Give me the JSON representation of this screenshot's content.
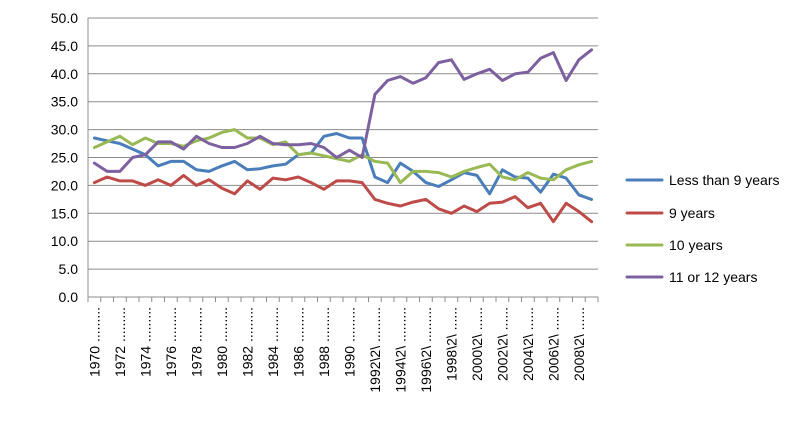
{
  "chart_data": {
    "type": "line",
    "title": "",
    "xlabel": "",
    "ylabel": "",
    "ylim": [
      0,
      50
    ],
    "yticks": [
      "0.0",
      "5.0",
      "10.0",
      "15.0",
      "20.0",
      "25.0",
      "30.0",
      "35.0",
      "40.0",
      "45.0",
      "50.0"
    ],
    "categories": [
      "1970",
      "1971",
      "1972",
      "1973",
      "1974",
      "1975",
      "1976",
      "1977",
      "1978",
      "1979",
      "1980",
      "1981",
      "1982",
      "1983",
      "1984",
      "1985",
      "1986",
      "1987",
      "1988",
      "1989",
      "1990",
      "1991",
      "1992",
      "1993",
      "1994",
      "1995",
      "1996",
      "1997",
      "1998",
      "1999",
      "2000",
      "2001",
      "2002",
      "2003",
      "2004",
      "2005",
      "2006",
      "2007",
      "2008",
      "2009"
    ],
    "tick_labels": [
      {
        "index": 0,
        "text": "1970 ........."
      },
      {
        "index": 2,
        "text": "1972 ........."
      },
      {
        "index": 4,
        "text": "1974 ........."
      },
      {
        "index": 6,
        "text": "1976 ........."
      },
      {
        "index": 8,
        "text": "1978 ........."
      },
      {
        "index": 10,
        "text": "1980 ........."
      },
      {
        "index": 12,
        "text": "1982 ........."
      },
      {
        "index": 14,
        "text": "1984 ........."
      },
      {
        "index": 16,
        "text": "1986 ........."
      },
      {
        "index": 18,
        "text": "1988 ........."
      },
      {
        "index": 20,
        "text": "1990 ........."
      },
      {
        "index": 22,
        "text": "1992\\2\\ ........."
      },
      {
        "index": 24,
        "text": "1994\\2\\ ........."
      },
      {
        "index": 26,
        "text": "1996\\2\\ ........."
      },
      {
        "index": 28,
        "text": "1998\\2\\ ......"
      },
      {
        "index": 30,
        "text": "2000\\2\\ ......"
      },
      {
        "index": 32,
        "text": "2002\\2\\ ......"
      },
      {
        "index": 34,
        "text": "2004\\2\\ ......"
      },
      {
        "index": 36,
        "text": "2006\\2\\ ......"
      },
      {
        "index": 38,
        "text": "2008\\2\\ ......"
      }
    ],
    "grid": true,
    "legend_position": "right",
    "series": [
      {
        "name": "Less than 9 years",
        "color": "#4a7ebb",
        "values": [
          28.5,
          28.0,
          27.5,
          26.5,
          25.5,
          23.5,
          24.3,
          24.3,
          22.8,
          22.5,
          23.5,
          24.3,
          22.8,
          23.0,
          23.5,
          23.8,
          25.5,
          25.8,
          28.8,
          29.3,
          28.5,
          28.5,
          21.5,
          20.5,
          24.0,
          22.5,
          20.5,
          19.8,
          21.0,
          22.3,
          21.8,
          18.5,
          22.8,
          21.5,
          21.3,
          18.8,
          22.0,
          21.3,
          18.3,
          17.5
        ]
      },
      {
        "name": "9 years",
        "color": "#be4b48",
        "values": [
          20.5,
          21.5,
          20.8,
          20.8,
          20.0,
          21.0,
          20.0,
          21.8,
          20.0,
          21.0,
          19.5,
          18.5,
          20.8,
          19.3,
          21.3,
          21.0,
          21.5,
          20.5,
          19.3,
          20.8,
          20.8,
          20.5,
          17.5,
          16.8,
          16.3,
          17.0,
          17.5,
          15.8,
          15.0,
          16.3,
          15.3,
          16.8,
          17.0,
          18.0,
          16.0,
          16.8,
          13.5,
          16.8,
          15.3,
          13.5
        ]
      },
      {
        "name": "10 years",
        "color": "#98b954",
        "values": [
          26.8,
          27.8,
          28.8,
          27.3,
          28.5,
          27.5,
          27.5,
          27.0,
          28.0,
          28.5,
          29.5,
          30.0,
          28.5,
          28.5,
          27.3,
          27.8,
          25.5,
          25.8,
          25.3,
          24.8,
          24.3,
          25.5,
          24.3,
          24.0,
          20.5,
          22.5,
          22.5,
          22.3,
          21.5,
          22.5,
          23.2,
          23.8,
          21.5,
          21.0,
          22.3,
          21.3,
          21.0,
          22.8,
          23.7,
          24.3
        ]
      },
      {
        "name": "11 or 12 years",
        "color": "#7d60a0",
        "values": [
          24.0,
          22.5,
          22.5,
          25.0,
          25.5,
          27.8,
          27.8,
          26.5,
          28.8,
          27.5,
          26.8,
          26.8,
          27.5,
          28.8,
          27.5,
          27.3,
          27.3,
          27.5,
          26.8,
          25.0,
          26.3,
          25.0,
          36.3,
          38.8,
          39.5,
          38.3,
          39.3,
          42.0,
          42.5,
          39.0,
          40.0,
          40.8,
          38.8,
          40.0,
          40.3,
          42.8,
          43.8,
          38.8,
          42.5,
          44.3
        ]
      }
    ]
  }
}
